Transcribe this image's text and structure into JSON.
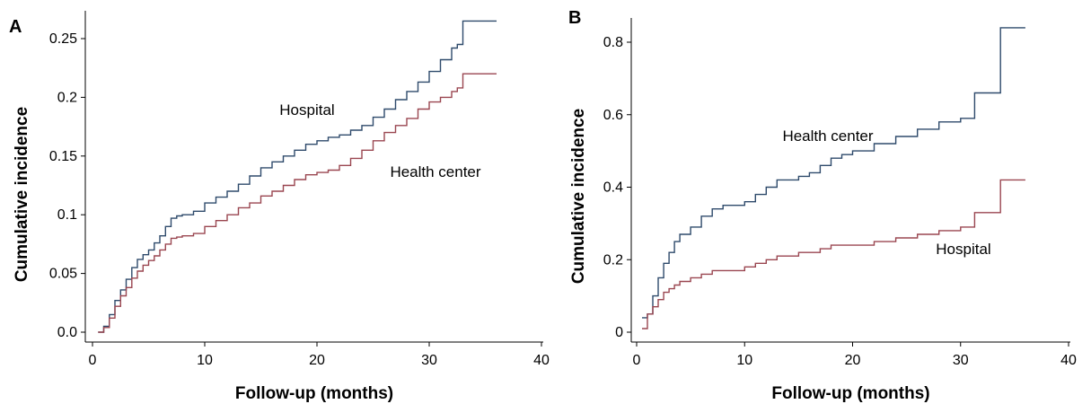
{
  "chart_data": [
    {
      "panel": "A",
      "type": "line",
      "xlabel": "Follow-up (months)",
      "ylabel": "Cumulative incidence",
      "xlim": [
        0,
        40
      ],
      "ylim": [
        0,
        0.25
      ],
      "xticks": [
        "0",
        "10",
        "20",
        "30",
        "40"
      ],
      "yticks": [
        "0.0",
        "0.05",
        "0.1",
        "0.15",
        "0.2",
        "0.25"
      ],
      "grid": false,
      "series": [
        {
          "name": "Hospital",
          "color": "#2e4a6b",
          "x": [
            0.5,
            1.0,
            1.5,
            2.0,
            2.5,
            3.0,
            3.5,
            4.0,
            4.5,
            5.0,
            5.5,
            6.0,
            6.5,
            7.0,
            7.5,
            8.0,
            9.0,
            10.0,
            11.0,
            12.0,
            13.0,
            14.0,
            15.0,
            16.0,
            17.0,
            18.0,
            19.0,
            20.0,
            21.0,
            22.0,
            23.0,
            24.0,
            25.0,
            26.0,
            27.0,
            28.0,
            29.0,
            30.0,
            31.0,
            32.0,
            32.5,
            33.0,
            36.0
          ],
          "y": [
            0.0,
            0.005,
            0.015,
            0.027,
            0.036,
            0.045,
            0.055,
            0.062,
            0.066,
            0.07,
            0.076,
            0.082,
            0.09,
            0.097,
            0.099,
            0.1,
            0.103,
            0.11,
            0.115,
            0.12,
            0.126,
            0.133,
            0.14,
            0.145,
            0.15,
            0.155,
            0.16,
            0.163,
            0.166,
            0.168,
            0.172,
            0.176,
            0.183,
            0.19,
            0.198,
            0.205,
            0.213,
            0.222,
            0.232,
            0.242,
            0.245,
            0.265,
            0.265
          ]
        },
        {
          "name": "Health center",
          "color": "#9a4650",
          "x": [
            0.5,
            1.0,
            1.5,
            2.0,
            2.5,
            3.0,
            3.5,
            4.0,
            4.5,
            5.0,
            5.5,
            6.0,
            6.5,
            7.0,
            7.5,
            8.0,
            9.0,
            10.0,
            11.0,
            12.0,
            13.0,
            14.0,
            15.0,
            16.0,
            17.0,
            18.0,
            19.0,
            20.0,
            21.0,
            22.0,
            23.0,
            24.0,
            25.0,
            26.0,
            27.0,
            28.0,
            29.0,
            30.0,
            31.0,
            32.0,
            32.5,
            33.0,
            36.0
          ],
          "y": [
            0.0,
            0.004,
            0.012,
            0.022,
            0.031,
            0.038,
            0.046,
            0.052,
            0.057,
            0.061,
            0.065,
            0.07,
            0.075,
            0.08,
            0.081,
            0.082,
            0.084,
            0.09,
            0.095,
            0.1,
            0.106,
            0.11,
            0.116,
            0.12,
            0.125,
            0.13,
            0.134,
            0.136,
            0.138,
            0.142,
            0.148,
            0.155,
            0.163,
            0.17,
            0.176,
            0.182,
            0.19,
            0.196,
            0.2,
            0.205,
            0.208,
            0.22,
            0.22
          ]
        }
      ]
    },
    {
      "panel": "B",
      "type": "line",
      "xlabel": "Follow-up (months)",
      "ylabel": "Cumulative incidence",
      "xlim": [
        0,
        40
      ],
      "ylim": [
        0,
        0.8
      ],
      "xticks": [
        "0",
        "10",
        "20",
        "30",
        "40"
      ],
      "yticks": [
        "0",
        "0.2",
        "0.4",
        "0.6",
        "0.8"
      ],
      "grid": false,
      "series": [
        {
          "name": "Health center",
          "color": "#2e4a6b",
          "x": [
            0.5,
            1.0,
            1.5,
            2.0,
            2.5,
            3.0,
            3.5,
            4.0,
            5.0,
            6.0,
            7.0,
            8.0,
            9.0,
            10.0,
            11.0,
            12.0,
            13.0,
            14.0,
            15.0,
            16.0,
            17.0,
            18.0,
            19.0,
            20.0,
            22.0,
            24.0,
            26.0,
            28.0,
            30.0,
            31.3,
            33.7,
            36.0
          ],
          "y": [
            0.04,
            0.05,
            0.1,
            0.15,
            0.19,
            0.22,
            0.25,
            0.27,
            0.29,
            0.32,
            0.34,
            0.35,
            0.35,
            0.36,
            0.38,
            0.4,
            0.42,
            0.42,
            0.43,
            0.44,
            0.46,
            0.48,
            0.49,
            0.5,
            0.52,
            0.54,
            0.56,
            0.58,
            0.59,
            0.66,
            0.84,
            0.84
          ]
        },
        {
          "name": "Hospital",
          "color": "#9a4650",
          "x": [
            0.5,
            1.0,
            1.5,
            2.0,
            2.5,
            3.0,
            3.5,
            4.0,
            5.0,
            6.0,
            7.0,
            8.0,
            9.0,
            10.0,
            11.0,
            12.0,
            13.0,
            14.0,
            15.0,
            16.0,
            17.0,
            18.0,
            20.0,
            22.0,
            24.0,
            26.0,
            28.0,
            30.0,
            31.3,
            33.7,
            36.0
          ],
          "y": [
            0.01,
            0.05,
            0.07,
            0.09,
            0.11,
            0.12,
            0.13,
            0.14,
            0.15,
            0.16,
            0.17,
            0.17,
            0.17,
            0.18,
            0.19,
            0.2,
            0.21,
            0.21,
            0.22,
            0.22,
            0.23,
            0.24,
            0.24,
            0.25,
            0.26,
            0.27,
            0.28,
            0.29,
            0.33,
            0.42,
            0.42
          ]
        }
      ]
    }
  ]
}
